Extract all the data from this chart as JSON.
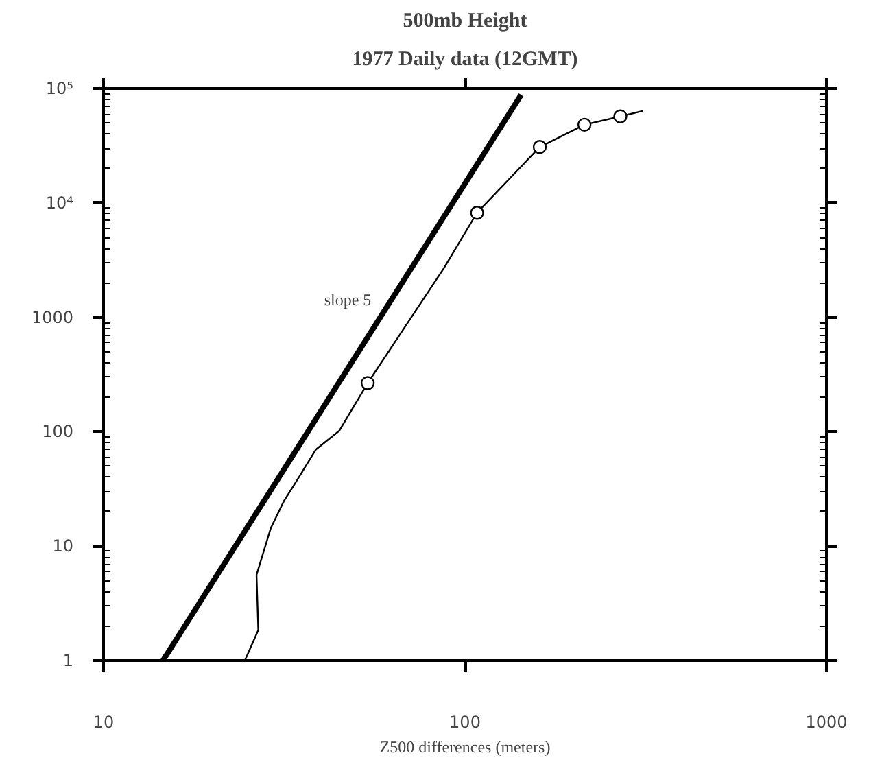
{
  "chart_data": {
    "type": "line",
    "title": "500mb Height",
    "subtitle": "1977 Daily data (12GMT)",
    "xlabel": "Z500 differences (meters)",
    "log": "xy",
    "xlim": [
      10,
      1000
    ],
    "ylim": [
      1,
      100000
    ],
    "xticks": [
      10,
      100,
      1000
    ],
    "yticks": [
      1,
      10,
      100,
      1000,
      {
        "value": 10000,
        "label": "10⁴"
      },
      {
        "value": 100000,
        "label": "10⁵"
      }
    ],
    "series": [
      {
        "color": "#000000",
        "x": [
          14.6,
          143
        ],
        "values": [
          1,
          88000
        ]
      },
      {
        "color": "#000000",
        "x": [
          24.6,
          26.8,
          26.5,
          29.0,
          31.6,
          34.0,
          38.7,
          44.9,
          53.8,
          87.5,
          108,
          161,
          214,
          269,
          311
        ],
        "values": [
          1,
          1.85,
          5.6,
          14.3,
          25,
          36,
          70,
          102,
          266,
          2700,
          8200,
          30800,
          48200,
          57000,
          63800
        ]
      },
      {
        "type": "scatter",
        "color": "#000000",
        "marker": "circle",
        "x": [
          53.8,
          108,
          161,
          214,
          269
        ],
        "values": [
          266,
          8200,
          30800,
          48200,
          57000
        ]
      }
    ],
    "annotations": [
      "slope 5"
    ]
  }
}
